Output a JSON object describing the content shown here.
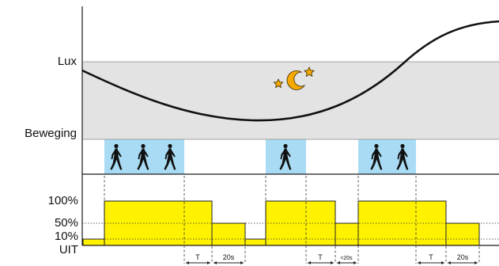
{
  "labels": {
    "lux": "Lux",
    "beweging": "Beweging",
    "pct_100": "100%",
    "pct_50": "50%",
    "pct_10": "10%",
    "uit": "UIT"
  },
  "timing": {
    "t1": "T",
    "d1": "20s",
    "t2": "T",
    "d2": "<20s",
    "t3": "T",
    "d3": "20s"
  },
  "icons": {
    "night": "moon-stars-icon",
    "person": "walking-person-icon"
  },
  "colors": {
    "lux_band": "#e3e3e3",
    "motion_zone": "#a9dcf4",
    "light_level": "#fff200",
    "moon": "#f5a800",
    "curve": "#111111"
  },
  "walker_groups": [
    3,
    1,
    2
  ],
  "light_levels": [
    {
      "level": "10%"
    },
    {
      "level": "100%"
    },
    {
      "level": "50%"
    },
    {
      "level": "10%"
    },
    {
      "level": "100%"
    },
    {
      "level": "50%"
    },
    {
      "level": "100%"
    },
    {
      "level": "50%"
    }
  ]
}
